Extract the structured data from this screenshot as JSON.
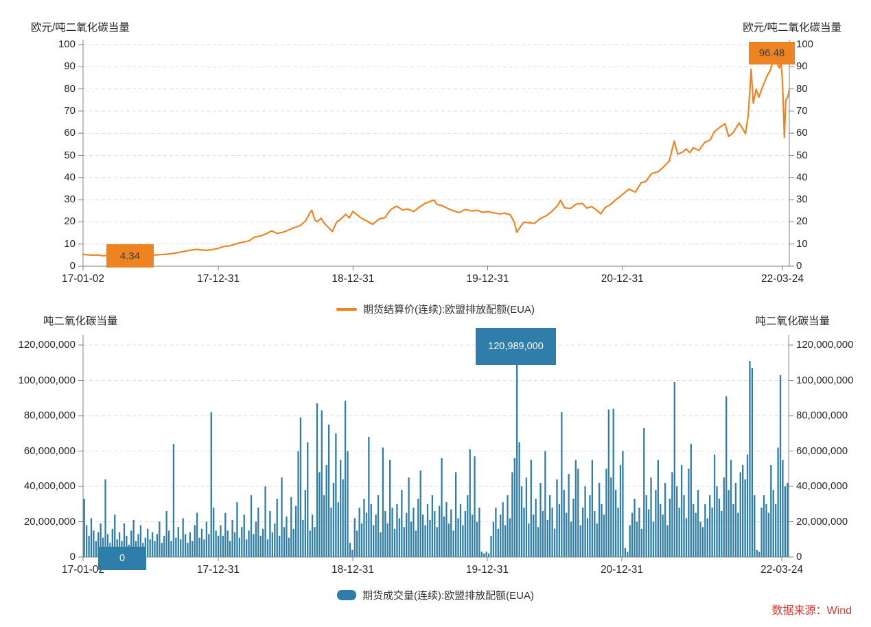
{
  "source_note": "数据来源：Wind",
  "colors": {
    "price_line": "#EE8421",
    "volume_bar": "#2E7EA9",
    "grid": "#DBDBDB",
    "axis": "#808080",
    "text": "#262626",
    "source_text": "#E2342C"
  },
  "chart_data": [
    {
      "type": "line",
      "name": "期货结算价(连续):欧盟排放配额(EUA)",
      "ylabel": "欧元/吨二氧化碳当量",
      "ylabel_right": "欧元/吨二氧化碳当量",
      "ylim": [
        0,
        100
      ],
      "grid": "dashed-horizontal",
      "legend_position": "bottom-center",
      "y_ticks": [
        0,
        10,
        20,
        30,
        40,
        50,
        60,
        70,
        80,
        90,
        100
      ],
      "x_ticks": [
        {
          "t": 0.0,
          "label": "17-01-02"
        },
        {
          "t": 0.1916,
          "label": "17-12-31"
        },
        {
          "t": 0.3823,
          "label": "18-12-31"
        },
        {
          "t": 0.5729,
          "label": "19-12-31"
        },
        {
          "t": 0.7636,
          "label": "20-12-31"
        },
        {
          "t": 0.9903,
          "label": "22-03-24"
        }
      ],
      "annotations": [
        {
          "at": "series-start-min",
          "label": "4.34"
        },
        {
          "at": "series-max",
          "label": "96.48"
        }
      ],
      "points": [
        [
          0,
          5.3
        ],
        [
          0.006,
          5.15
        ],
        [
          0.012,
          5.0
        ],
        [
          0.02,
          5.05
        ],
        [
          0.028,
          4.7
        ],
        [
          0.036,
          4.85
        ],
        [
          0.044,
          4.6
        ],
        [
          0.052,
          4.45
        ],
        [
          0.062,
          4.5
        ],
        [
          0.07,
          4.34
        ],
        [
          0.078,
          4.55
        ],
        [
          0.088,
          4.85
        ],
        [
          0.099,
          5.0
        ],
        [
          0.11,
          5.2
        ],
        [
          0.12,
          5.45
        ],
        [
          0.131,
          5.9
        ],
        [
          0.142,
          6.6
        ],
        [
          0.152,
          7.2
        ],
        [
          0.161,
          7.6
        ],
        [
          0.168,
          7.3
        ],
        [
          0.175,
          7.15
        ],
        [
          0.183,
          7.5
        ],
        [
          0.191,
          8.0
        ],
        [
          0.199,
          8.9
        ],
        [
          0.208,
          9.2
        ],
        [
          0.218,
          10.2
        ],
        [
          0.227,
          10.9
        ],
        [
          0.235,
          11.4
        ],
        [
          0.243,
          13.2
        ],
        [
          0.251,
          13.6
        ],
        [
          0.259,
          14.6
        ],
        [
          0.267,
          15.9
        ],
        [
          0.275,
          14.8
        ],
        [
          0.283,
          15.3
        ],
        [
          0.291,
          16.3
        ],
        [
          0.299,
          17.4
        ],
        [
          0.307,
          18.2
        ],
        [
          0.315,
          20.4
        ],
        [
          0.321,
          24.0
        ],
        [
          0.324,
          25.2
        ],
        [
          0.328,
          21.0
        ],
        [
          0.331,
          20.0
        ],
        [
          0.337,
          21.6
        ],
        [
          0.342,
          19.2
        ],
        [
          0.347,
          17.6
        ],
        [
          0.353,
          15.6
        ],
        [
          0.359,
          19.9
        ],
        [
          0.364,
          21.0
        ],
        [
          0.372,
          23.4
        ],
        [
          0.377,
          21.8
        ],
        [
          0.382,
          24.7
        ],
        [
          0.388,
          23.2
        ],
        [
          0.393,
          21.9
        ],
        [
          0.402,
          20.3
        ],
        [
          0.41,
          18.9
        ],
        [
          0.419,
          21.3
        ],
        [
          0.427,
          21.8
        ],
        [
          0.436,
          25.6
        ],
        [
          0.444,
          27.1
        ],
        [
          0.452,
          25.4
        ],
        [
          0.46,
          25.8
        ],
        [
          0.468,
          24.6
        ],
        [
          0.476,
          26.6
        ],
        [
          0.484,
          28.3
        ],
        [
          0.492,
          29.3
        ],
        [
          0.497,
          29.8
        ],
        [
          0.501,
          27.9
        ],
        [
          0.509,
          27.2
        ],
        [
          0.517,
          25.9
        ],
        [
          0.525,
          24.9
        ],
        [
          0.533,
          24.2
        ],
        [
          0.541,
          25.6
        ],
        [
          0.55,
          24.9
        ],
        [
          0.558,
          25.2
        ],
        [
          0.566,
          24.3
        ],
        [
          0.573,
          24.6
        ],
        [
          0.581,
          24.1
        ],
        [
          0.59,
          23.6
        ],
        [
          0.597,
          23.9
        ],
        [
          0.605,
          23.2
        ],
        [
          0.611,
          19.5
        ],
        [
          0.614,
          15.3
        ],
        [
          0.618,
          17.2
        ],
        [
          0.624,
          19.8
        ],
        [
          0.631,
          19.6
        ],
        [
          0.639,
          19.3
        ],
        [
          0.647,
          21.4
        ],
        [
          0.656,
          22.8
        ],
        [
          0.664,
          24.8
        ],
        [
          0.672,
          27.4
        ],
        [
          0.676,
          29.7
        ],
        [
          0.682,
          26.3
        ],
        [
          0.69,
          26.0
        ],
        [
          0.698,
          28.0
        ],
        [
          0.707,
          28.3
        ],
        [
          0.713,
          26.2
        ],
        [
          0.72,
          26.9
        ],
        [
          0.728,
          25.1
        ],
        [
          0.733,
          23.6
        ],
        [
          0.739,
          26.4
        ],
        [
          0.747,
          27.9
        ],
        [
          0.755,
          30.2
        ],
        [
          0.76,
          31.3
        ],
        [
          0.765,
          32.7
        ],
        [
          0.773,
          34.8
        ],
        [
          0.782,
          33.4
        ],
        [
          0.79,
          37.6
        ],
        [
          0.797,
          38.3
        ],
        [
          0.805,
          41.8
        ],
        [
          0.814,
          42.6
        ],
        [
          0.821,
          44.5
        ],
        [
          0.83,
          47.5
        ],
        [
          0.837,
          56.4
        ],
        [
          0.842,
          50.6
        ],
        [
          0.848,
          51.3
        ],
        [
          0.854,
          52.9
        ],
        [
          0.859,
          51.2
        ],
        [
          0.864,
          53.5
        ],
        [
          0.872,
          52.2
        ],
        [
          0.88,
          55.8
        ],
        [
          0.888,
          57.0
        ],
        [
          0.894,
          60.8
        ],
        [
          0.902,
          62.8
        ],
        [
          0.909,
          64.3
        ],
        [
          0.914,
          58.5
        ],
        [
          0.92,
          60.1
        ],
        [
          0.929,
          64.6
        ],
        [
          0.934,
          62.0
        ],
        [
          0.938,
          59.8
        ],
        [
          0.942,
          68.5
        ],
        [
          0.946,
          88.9
        ],
        [
          0.949,
          73.5
        ],
        [
          0.953,
          79.8
        ],
        [
          0.957,
          76.2
        ],
        [
          0.961,
          80.1
        ],
        [
          0.966,
          83.9
        ],
        [
          0.969,
          86.2
        ],
        [
          0.973,
          88.3
        ],
        [
          0.976,
          91.6
        ],
        [
          0.979,
          96.48
        ],
        [
          0.982,
          91.8
        ],
        [
          0.986,
          89.4
        ],
        [
          0.988,
          92.9
        ],
        [
          0.99,
          85.0
        ],
        [
          0.992,
          68.0
        ],
        [
          0.993,
          58.1
        ],
        [
          0.995,
          75.0
        ],
        [
          0.998,
          76.5
        ],
        [
          1,
          79.6
        ]
      ]
    },
    {
      "type": "bar",
      "name": "期货成交量(连续):欧盟排放配额(EUA)",
      "ylabel": "吨二氧化碳当量",
      "ylabel_right": "吨二氧化碳当量",
      "ylim": [
        0,
        120000000
      ],
      "grid": "dashed-horizontal",
      "legend_position": "bottom-center",
      "y_tick_labels": [
        "0",
        "20,000,000",
        "40,000,000",
        "60,000,000",
        "80,000,000",
        "100,000,000",
        "120,000,000"
      ],
      "x_ticks": [
        {
          "t": 0.0,
          "label": "17-01-02"
        },
        {
          "t": 0.1916,
          "label": "17-12-31"
        },
        {
          "t": 0.3823,
          "label": "18-12-31"
        },
        {
          "t": 0.5729,
          "label": "19-12-31"
        },
        {
          "t": 0.7636,
          "label": "20-12-31"
        },
        {
          "t": 0.9903,
          "label": "22-03-24"
        }
      ],
      "annotations": [
        {
          "at": "series-start",
          "label": "0"
        },
        {
          "at": "series-max",
          "label": "120,989,000"
        }
      ],
      "values_unit": "millions",
      "values": [
        33,
        18,
        12,
        22,
        15,
        9,
        14,
        19,
        11,
        44,
        13,
        8,
        16,
        24,
        10,
        14,
        9,
        19,
        12,
        7,
        15,
        21,
        9,
        13,
        18,
        8,
        11,
        16,
        10,
        14,
        9,
        13,
        20,
        8,
        12,
        26,
        15,
        9,
        64,
        11,
        17,
        10,
        22,
        13,
        8,
        14,
        9,
        18,
        25,
        11,
        16,
        10,
        20,
        13,
        82,
        28,
        15,
        12,
        18,
        12,
        25,
        15,
        9,
        21,
        14,
        31,
        11,
        17,
        24,
        10,
        15,
        35,
        13,
        20,
        28,
        12,
        16,
        40,
        10,
        26,
        14,
        19,
        33,
        12,
        45,
        17,
        23,
        11,
        34,
        16,
        29,
        60,
        79,
        21,
        38,
        65,
        15,
        24,
        17,
        87,
        48,
        83,
        35,
        52,
        75,
        28,
        42,
        70,
        31,
        55,
        44,
        88.5,
        60,
        8,
        4,
        22,
        15,
        28,
        19,
        33,
        25,
        68,
        30,
        18,
        24,
        35,
        14,
        62,
        26,
        19,
        55,
        28,
        16,
        30,
        22,
        38,
        17,
        25,
        45,
        20,
        28,
        15,
        33,
        49,
        24,
        18,
        30,
        21,
        35,
        26,
        17,
        29,
        56,
        23,
        31,
        19,
        27,
        15,
        48,
        22,
        30,
        18,
        26,
        35,
        61,
        24,
        57,
        20,
        28,
        3,
        2,
        3,
        2,
        12,
        20,
        28,
        16,
        24,
        31,
        18,
        35,
        22,
        48,
        56,
        120.989,
        65,
        40,
        28,
        45,
        19,
        55,
        24,
        33,
        17,
        42,
        26,
        60,
        21,
        35,
        28,
        16,
        44,
        30,
        82,
        38,
        25,
        47,
        20,
        33,
        55,
        50,
        18,
        28,
        40,
        22,
        35,
        55,
        26,
        19,
        42,
        30,
        24,
        50,
        83.5,
        45,
        84,
        38,
        28,
        52,
        60,
        5,
        3,
        18,
        25,
        33,
        20,
        28,
        16,
        73,
        35,
        27,
        45,
        20,
        38,
        55,
        30,
        24,
        42,
        18,
        33,
        48,
        99,
        40,
        28,
        52,
        35,
        22,
        50,
        64,
        30,
        25,
        38,
        20,
        17,
        30,
        22,
        35,
        28,
        58,
        40,
        33,
        26,
        45,
        91,
        38,
        55,
        30,
        42,
        25,
        48,
        52,
        44,
        58,
        111,
        107,
        35,
        4,
        3,
        28,
        35,
        30,
        25,
        52,
        38,
        30,
        62,
        103,
        55,
        40,
        42
      ]
    }
  ]
}
